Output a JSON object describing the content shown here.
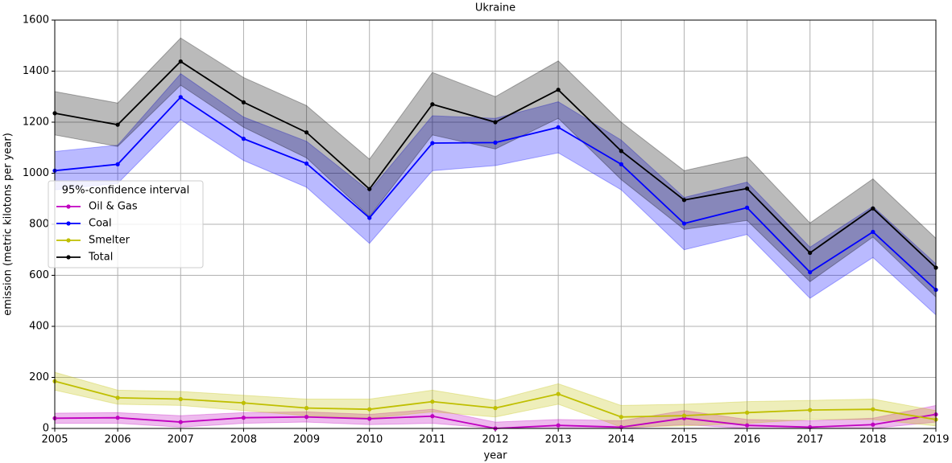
{
  "chart_data": {
    "type": "line",
    "title": "Ukraine",
    "xlabel": "year",
    "ylabel": "emission (metric kilotons per year)",
    "legend_title": "95%-confidence interval",
    "legend": "left",
    "grid": true,
    "x": [
      2005,
      2006,
      2007,
      2008,
      2009,
      2010,
      2011,
      2012,
      2013,
      2014,
      2015,
      2016,
      2017,
      2018,
      2019
    ],
    "xlim": [
      2005,
      2019
    ],
    "xticks": [
      2005,
      2006,
      2007,
      2008,
      2009,
      2010,
      2011,
      2012,
      2013,
      2014,
      2015,
      2016,
      2017,
      2018,
      2019
    ],
    "ylim": [
      0,
      1600
    ],
    "yticks": [
      0,
      200,
      400,
      600,
      800,
      1000,
      1200,
      1400,
      1600
    ],
    "series": [
      {
        "name": "Oil & Gas",
        "color": "#c000c0",
        "values": [
          40,
          42,
          25,
          42,
          45,
          38,
          48,
          0,
          12,
          5,
          40,
          12,
          5,
          15,
          55
        ],
        "upper": [
          60,
          62,
          50,
          62,
          65,
          55,
          75,
          25,
          35,
          30,
          70,
          35,
          30,
          40,
          90
        ],
        "lower": [
          20,
          20,
          5,
          20,
          25,
          15,
          20,
          0,
          0,
          0,
          15,
          0,
          0,
          0,
          25
        ]
      },
      {
        "name": "Coal",
        "color": "#0000ff",
        "values": [
          1010,
          1035,
          1298,
          1135,
          1038,
          825,
          1118,
          1120,
          1180,
          1035,
          803,
          865,
          612,
          770,
          543
        ],
        "upper": [
          1085,
          1110,
          1390,
          1220,
          1125,
          930,
          1225,
          1215,
          1280,
          1130,
          905,
          965,
          710,
          870,
          645
        ],
        "lower": [
          935,
          960,
          1210,
          1050,
          945,
          725,
          1010,
          1030,
          1080,
          935,
          700,
          760,
          510,
          670,
          445
        ]
      },
      {
        "name": "Smelter",
        "color": "#bfbf00",
        "values": [
          185,
          120,
          115,
          100,
          80,
          75,
          105,
          80,
          135,
          45,
          50,
          62,
          72,
          75,
          35
        ],
        "upper": [
          220,
          150,
          145,
          130,
          115,
          115,
          150,
          110,
          175,
          90,
          95,
          105,
          110,
          115,
          70
        ],
        "lower": [
          150,
          95,
          90,
          70,
          50,
          40,
          65,
          45,
          95,
          5,
          10,
          20,
          35,
          35,
          10
        ]
      },
      {
        "name": "Total",
        "color": "#000000",
        "values": [
          1235,
          1190,
          1438,
          1278,
          1160,
          938,
          1270,
          1200,
          1327,
          1087,
          895,
          940,
          688,
          862,
          630
        ],
        "upper": [
          1320,
          1275,
          1530,
          1375,
          1265,
          1055,
          1395,
          1300,
          1440,
          1200,
          1010,
          1065,
          805,
          978,
          745
        ],
        "lower": [
          1150,
          1105,
          1345,
          1180,
          1060,
          830,
          1150,
          1095,
          1215,
          975,
          780,
          815,
          575,
          750,
          515
        ]
      }
    ]
  }
}
